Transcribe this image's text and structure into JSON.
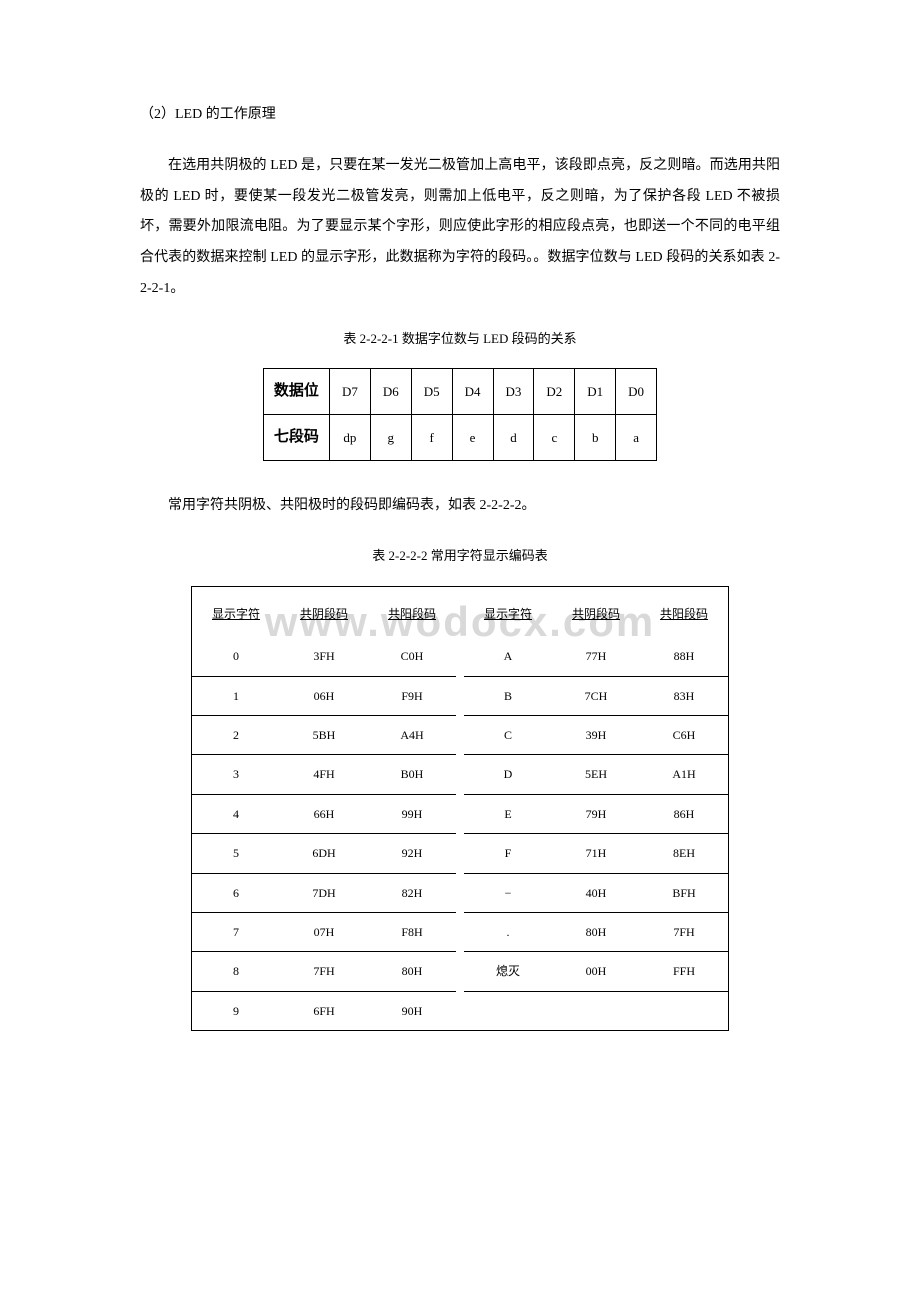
{
  "heading": "（2）LED 的工作原理",
  "paragraph": "在选用共阴极的 LED 是，只要在某一发光二极管加上高电平，该段即点亮，反之则暗。而选用共阳极的 LED 时，要使某一段发光二极管发亮，则需加上低电平，反之则暗，为了保护各段 LED 不被损坏，需要外加限流电阻。为了要显示某个字形，则应使此字形的相应段点亮，也即送一个不同的电平组合代表的数据来控制 LED 的显示字形，此数据称为字符的段码。。数据字位数与 LED 段码的关系如表 2-2-2-1。",
  "table1_caption": "表 2-2-2-1  数据字位数与 LED 段码的关系",
  "table1": {
    "row1_label": "数据位",
    "row1_cells": [
      "D7",
      "D6",
      "D5",
      "D4",
      "D3",
      "D2",
      "D1",
      "D0"
    ],
    "row2_label": "七段码",
    "row2_cells": [
      "dp",
      "g",
      "f",
      "e",
      "d",
      "c",
      "b",
      "a"
    ]
  },
  "mid_text": "常用字符共阴极、共阳极时的段码即编码表，如表 2-2-2-2。",
  "table2_caption": "表 2-2-2-2  常用字符显示编码表",
  "watermark": "www.wodocx.com",
  "table2": {
    "headers": [
      "显示字符",
      "共阴段码",
      "共阳段码",
      "显示字符",
      "共阴段码",
      "共阳段码"
    ],
    "rows": [
      [
        "0",
        "3FH",
        "C0H",
        "A",
        "77H",
        "88H"
      ],
      [
        "1",
        "06H",
        "F9H",
        "B",
        "7CH",
        "83H"
      ],
      [
        "2",
        "5BH",
        "A4H",
        "C",
        "39H",
        "C6H"
      ],
      [
        "3",
        "4FH",
        "B0H",
        "D",
        "5EH",
        "A1H"
      ],
      [
        "4",
        "66H",
        "99H",
        "E",
        "79H",
        "86H"
      ],
      [
        "5",
        "6DH",
        "92H",
        "F",
        "71H",
        "8EH"
      ],
      [
        "6",
        "7DH",
        "82H",
        "−",
        "40H",
        "BFH"
      ],
      [
        "7",
        "07H",
        "F8H",
        ".",
        "80H",
        "7FH"
      ],
      [
        "8",
        "7FH",
        "80H",
        "熄灭",
        "00H",
        "FFH"
      ],
      [
        "9",
        "6FH",
        "90H",
        "",
        "",
        ""
      ]
    ]
  }
}
